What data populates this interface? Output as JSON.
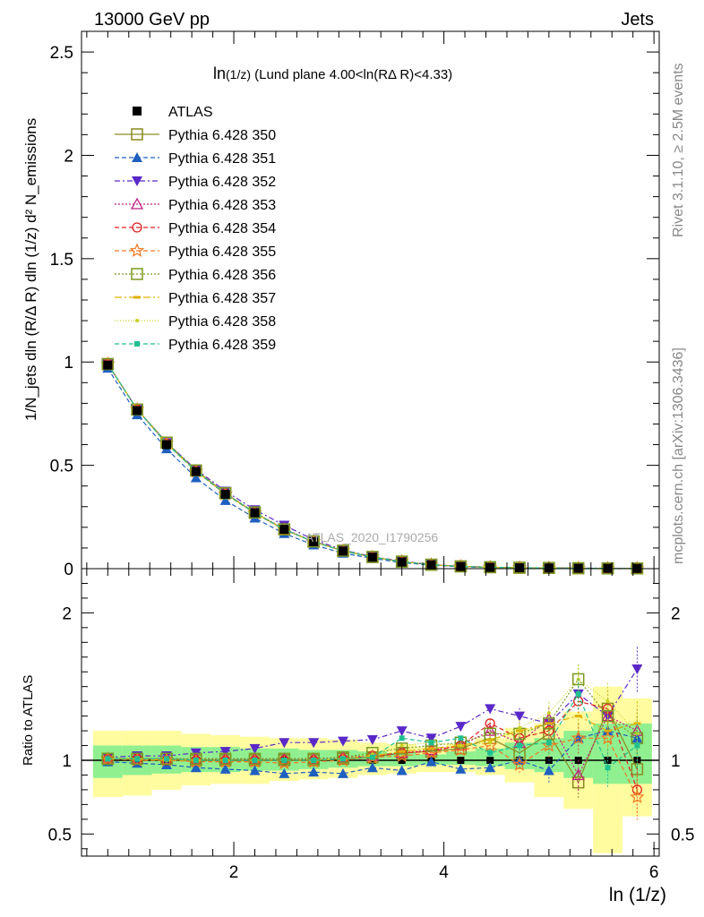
{
  "header": {
    "left": "13000 GeV pp",
    "right": "Jets",
    "side_top": "Rivet 3.1.10, ≥ 2.5M events",
    "side_bottom": "mcplots.cern.ch [arXiv:1306.3436]"
  },
  "chart_data": [
    {
      "type": "line",
      "panel": "main",
      "title_main": "ln",
      "title_sub": "(1/z)",
      "title_rest": " (Lund plane 4.00<ln(RΔ R)<4.33)",
      "watermark": "ATLAS_2020_I1790256",
      "ylabel": "1/N_jets dln (R/Δ R) dln (1/z)  d² N_emissions",
      "xlim": [
        0.55,
        6.05
      ],
      "ylim": [
        0,
        2.6
      ],
      "y_ticks": [
        0,
        0.5,
        1,
        1.5,
        2,
        2.5
      ],
      "y_tick_labels": [
        "0",
        "0.5",
        "1",
        "1.5",
        "2",
        "2.5"
      ],
      "x": [
        0.8,
        1.08,
        1.36,
        1.64,
        1.92,
        2.2,
        2.48,
        2.76,
        3.04,
        3.32,
        3.6,
        3.88,
        4.16,
        4.44,
        4.72,
        5.0,
        5.28,
        5.56,
        5.84
      ],
      "series": [
        {
          "name": "ATLAS",
          "values": [
            0.985,
            0.765,
            0.6,
            0.47,
            0.36,
            0.27,
            0.19,
            0.13,
            0.085,
            0.055,
            0.032,
            0.018,
            0.01,
            0.006,
            0.004,
            0.003,
            0.002,
            0.0015,
            0.001
          ]
        },
        {
          "name": "Pythia 6.428 350",
          "values": [
            0.99,
            0.77,
            0.61,
            0.475,
            0.365,
            0.27,
            0.19,
            0.13,
            0.086,
            0.056,
            0.034,
            0.019,
            0.011,
            0.007,
            0.0045,
            0.0035,
            0.002,
            0.0015,
            0.001
          ]
        },
        {
          "name": "Pythia 6.428 351",
          "values": [
            0.97,
            0.745,
            0.58,
            0.44,
            0.33,
            0.245,
            0.17,
            0.115,
            0.075,
            0.05,
            0.029,
            0.017,
            0.009,
            0.005,
            0.0035,
            0.0025,
            0.002,
            0.0015,
            0.001
          ]
        },
        {
          "name": "Pythia 6.428 352",
          "values": [
            0.99,
            0.77,
            0.61,
            0.48,
            0.375,
            0.285,
            0.21,
            0.14,
            0.09,
            0.058,
            0.036,
            0.02,
            0.011,
            0.007,
            0.0045,
            0.0035,
            0.0025,
            0.002,
            0.0015
          ]
        },
        {
          "name": "Pythia 6.428 353",
          "values": [
            0.99,
            0.77,
            0.605,
            0.475,
            0.365,
            0.272,
            0.192,
            0.132,
            0.087,
            0.057,
            0.034,
            0.019,
            0.011,
            0.007,
            0.0045,
            0.0035,
            0.002,
            0.0015,
            0.001
          ]
        },
        {
          "name": "Pythia 6.428 354",
          "values": [
            0.99,
            0.77,
            0.605,
            0.472,
            0.362,
            0.27,
            0.19,
            0.13,
            0.086,
            0.056,
            0.034,
            0.019,
            0.011,
            0.007,
            0.0045,
            0.0035,
            0.002,
            0.0015,
            0.001
          ]
        },
        {
          "name": "Pythia 6.428 355",
          "values": [
            0.99,
            0.77,
            0.605,
            0.47,
            0.36,
            0.268,
            0.188,
            0.13,
            0.086,
            0.056,
            0.034,
            0.019,
            0.011,
            0.007,
            0.0045,
            0.0035,
            0.002,
            0.0015,
            0.001
          ]
        },
        {
          "name": "Pythia 6.428 356",
          "values": [
            0.99,
            0.77,
            0.61,
            0.475,
            0.365,
            0.272,
            0.19,
            0.132,
            0.087,
            0.057,
            0.034,
            0.019,
            0.011,
            0.007,
            0.0045,
            0.0035,
            0.002,
            0.0015,
            0.001
          ]
        },
        {
          "name": "Pythia 6.428 357",
          "values": [
            0.99,
            0.77,
            0.605,
            0.472,
            0.362,
            0.27,
            0.19,
            0.13,
            0.086,
            0.056,
            0.034,
            0.019,
            0.011,
            0.007,
            0.0045,
            0.0035,
            0.002,
            0.0015,
            0.001
          ]
        },
        {
          "name": "Pythia 6.428 358",
          "values": [
            0.99,
            0.77,
            0.605,
            0.472,
            0.362,
            0.27,
            0.19,
            0.13,
            0.086,
            0.056,
            0.034,
            0.019,
            0.011,
            0.007,
            0.0045,
            0.0035,
            0.002,
            0.0015,
            0.001
          ]
        },
        {
          "name": "Pythia 6.428 359",
          "values": [
            0.99,
            0.77,
            0.605,
            0.472,
            0.362,
            0.27,
            0.19,
            0.13,
            0.086,
            0.056,
            0.034,
            0.019,
            0.011,
            0.007,
            0.0045,
            0.0035,
            0.002,
            0.0015,
            0.001
          ]
        }
      ]
    },
    {
      "type": "line",
      "panel": "ratio",
      "ylabel": "Ratio to ATLAS",
      "xlabel": "ln (1/z)",
      "xlim": [
        0.55,
        6.05
      ],
      "ylim": [
        0.35,
        2.3
      ],
      "y_ticks": [
        0.5,
        1,
        2
      ],
      "y_tick_labels": [
        "0.5",
        "1",
        "2"
      ],
      "x_ticks": [
        2,
        4,
        6
      ],
      "x_tick_labels": [
        "2",
        "4",
        "6"
      ],
      "x": [
        0.8,
        1.08,
        1.36,
        1.64,
        1.92,
        2.2,
        2.48,
        2.76,
        3.04,
        3.32,
        3.6,
        3.88,
        4.16,
        4.44,
        4.72,
        5.0,
        5.28,
        5.56,
        5.84
      ],
      "bin_edges": [
        0.66,
        0.94,
        1.22,
        1.5,
        1.78,
        2.06,
        2.34,
        2.62,
        2.9,
        3.18,
        3.46,
        3.74,
        4.02,
        4.3,
        4.58,
        4.86,
        5.14,
        5.42,
        5.7,
        5.98
      ],
      "band_1sigma": [
        [
          0.88,
          1.1
        ],
        [
          0.9,
          1.1
        ],
        [
          0.91,
          1.1
        ],
        [
          0.92,
          1.09
        ],
        [
          0.92,
          1.09
        ],
        [
          0.93,
          1.08
        ],
        [
          0.93,
          1.08
        ],
        [
          0.94,
          1.07
        ],
        [
          0.95,
          1.07
        ],
        [
          0.96,
          1.06
        ],
        [
          0.96,
          1.05
        ],
        [
          0.97,
          1.04
        ],
        [
          0.97,
          1.06
        ],
        [
          0.96,
          1.08
        ],
        [
          0.94,
          1.12
        ],
        [
          0.92,
          1.15
        ],
        [
          0.88,
          1.2
        ],
        [
          0.84,
          1.25
        ],
        [
          0.84,
          1.25
        ]
      ],
      "band_2sigma": [
        [
          0.75,
          1.2
        ],
        [
          0.76,
          1.2
        ],
        [
          0.8,
          1.2
        ],
        [
          0.83,
          1.18
        ],
        [
          0.84,
          1.17
        ],
        [
          0.84,
          1.16
        ],
        [
          0.86,
          1.15
        ],
        [
          0.87,
          1.15
        ],
        [
          0.88,
          1.14
        ],
        [
          0.9,
          1.12
        ],
        [
          0.91,
          1.11
        ],
        [
          0.92,
          1.09
        ],
        [
          0.92,
          1.11
        ],
        [
          0.9,
          1.15
        ],
        [
          0.85,
          1.22
        ],
        [
          0.75,
          1.25
        ],
        [
          0.67,
          1.33
        ],
        [
          0.37,
          1.5
        ],
        [
          0.62,
          1.42
        ]
      ],
      "series": [
        {
          "name": "Pythia 6.428 350",
          "values": [
            1.01,
            1.01,
            1.01,
            1.0,
            1.0,
            1.0,
            1.0,
            1.0,
            1.01,
            1.02,
            1.05,
            1.06,
            1.08,
            1.15,
            1.05,
            1.18,
            0.85,
            1.35,
            0.94
          ]
        },
        {
          "name": "Pythia 6.428 351",
          "values": [
            0.99,
            0.98,
            0.97,
            0.95,
            0.94,
            0.93,
            0.91,
            0.92,
            0.91,
            0.95,
            0.93,
            0.99,
            0.94,
            0.95,
            1.0,
            0.93,
            1.15,
            1.2,
            1.15
          ]
        },
        {
          "name": "Pythia 6.428 352",
          "values": [
            1.02,
            1.03,
            1.03,
            1.05,
            1.06,
            1.08,
            1.12,
            1.12,
            1.13,
            1.14,
            1.2,
            1.15,
            1.23,
            1.35,
            1.3,
            1.25,
            1.45,
            1.3,
            1.62
          ]
        },
        {
          "name": "Pythia 6.428 353",
          "values": [
            1.01,
            1.01,
            1.01,
            1.01,
            1.01,
            1.01,
            1.01,
            1.01,
            1.02,
            1.03,
            1.05,
            1.07,
            1.1,
            1.2,
            1.12,
            1.28,
            0.9,
            1.3,
            1.2
          ]
        },
        {
          "name": "Pythia 6.428 354",
          "values": [
            1.01,
            1.01,
            1.0,
            1.0,
            1.0,
            1.0,
            1.0,
            1.0,
            1.01,
            1.03,
            1.05,
            1.06,
            1.1,
            1.25,
            1.15,
            1.2,
            1.4,
            1.35,
            0.8
          ]
        },
        {
          "name": "Pythia 6.428 355",
          "values": [
            1.01,
            1.0,
            1.0,
            0.99,
            0.99,
            0.99,
            0.98,
            0.99,
            1.0,
            1.02,
            1.03,
            1.05,
            1.07,
            1.1,
            0.97,
            1.1,
            1.15,
            1.15,
            0.75
          ]
        },
        {
          "name": "Pythia 6.428 356",
          "values": [
            1.01,
            1.01,
            1.01,
            1.01,
            1.01,
            1.01,
            1.01,
            1.01,
            1.02,
            1.05,
            1.08,
            1.1,
            1.12,
            1.18,
            1.18,
            1.25,
            1.55,
            1.3,
            1.15
          ]
        },
        {
          "name": "Pythia 6.428 357",
          "values": [
            1.01,
            1.01,
            1.0,
            1.0,
            1.0,
            1.0,
            1.0,
            1.0,
            1.01,
            1.03,
            1.06,
            1.08,
            1.1,
            1.14,
            1.2,
            1.25,
            1.3,
            1.2,
            1.25
          ]
        },
        {
          "name": "Pythia 6.428 358",
          "values": [
            1.01,
            1.01,
            1.0,
            1.0,
            1.0,
            1.0,
            1.0,
            1.0,
            1.01,
            1.04,
            1.1,
            1.12,
            1.1,
            1.12,
            1.22,
            1.32,
            1.55,
            1.4,
            1.18
          ]
        },
        {
          "name": "Pythia 6.428 359",
          "values": [
            1.01,
            1.01,
            1.01,
            1.0,
            1.0,
            1.0,
            1.0,
            1.0,
            1.01,
            1.02,
            1.15,
            1.12,
            1.15,
            1.05,
            1.1,
            1.12,
            1.45,
            0.95,
            1.1
          ]
        }
      ]
    }
  ],
  "style": {
    "ATLAS": {
      "color": "#000000",
      "marker": "square-filled",
      "dash": ""
    },
    "Pythia 6.428 350": {
      "color": "#8a8a20",
      "marker": "square-open",
      "dash": ""
    },
    "Pythia 6.428 351": {
      "color": "#1f5fbf",
      "marker": "triangle-up-filled",
      "dash": "5,3"
    },
    "Pythia 6.428 352": {
      "color": "#5a28c8",
      "marker": "triangle-down-filled",
      "dash": "6,3,2,3"
    },
    "Pythia 6.428 353": {
      "color": "#c02080",
      "marker": "triangle-up-open",
      "dash": "2,2"
    },
    "Pythia 6.428 354": {
      "color": "#e02020",
      "marker": "circle-open",
      "dash": "5,3"
    },
    "Pythia 6.428 355": {
      "color": "#f07820",
      "marker": "star-open",
      "dash": "5,3"
    },
    "Pythia 6.428 356": {
      "color": "#7a9a20",
      "marker": "square-open",
      "dash": "2,2"
    },
    "Pythia 6.428 357": {
      "color": "#e0b000",
      "marker": "dash-small",
      "dash": "8,3,2,3"
    },
    "Pythia 6.428 358": {
      "color": "#c8d020",
      "marker": "dot",
      "dash": "1,2"
    },
    "Pythia 6.428 359": {
      "color": "#20c090",
      "marker": "square-filled-small",
      "dash": "5,3"
    },
    "band_1sigma_color": "#90f090",
    "band_2sigma_color": "#fffca0"
  }
}
